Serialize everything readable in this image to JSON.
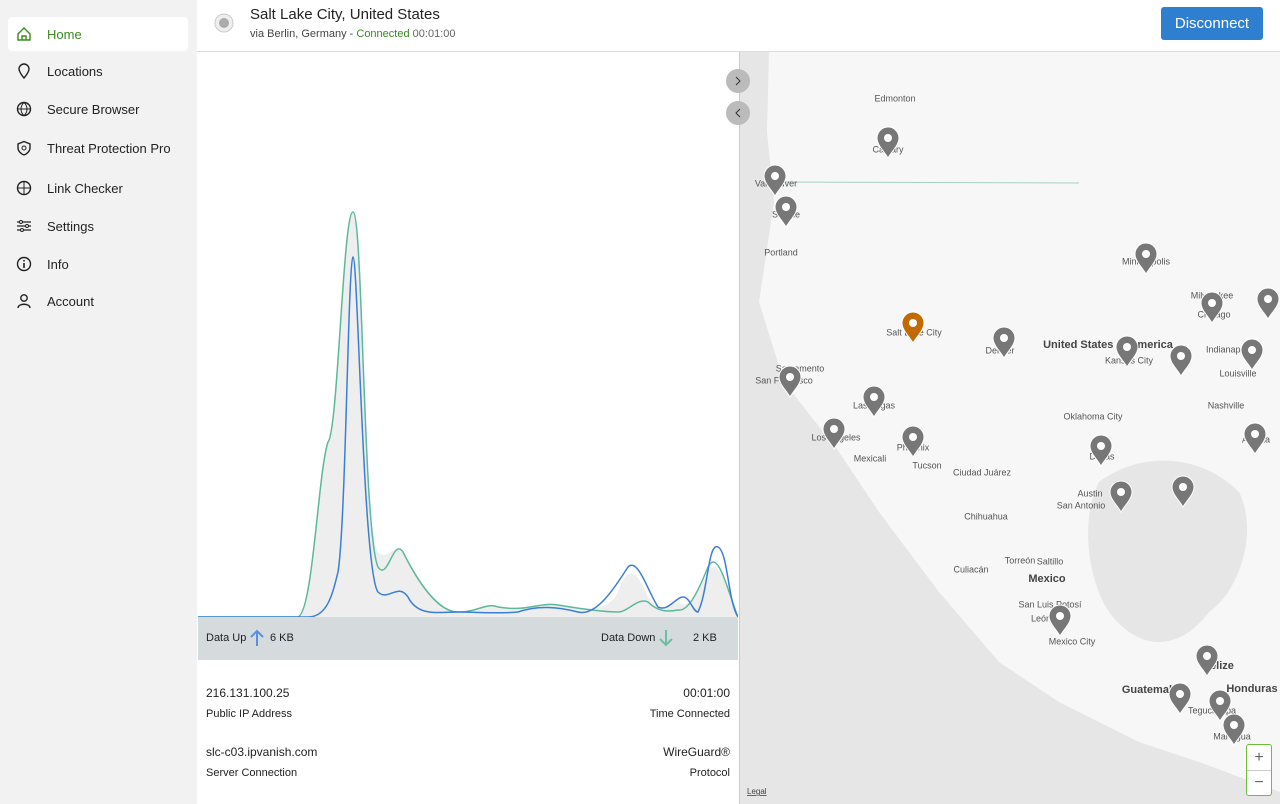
{
  "sidebar": {
    "items": [
      "Home",
      "Locations",
      "Secure Browser",
      "Threat Protection Pro",
      "Link Checker",
      "Settings",
      "Info",
      "Account"
    ]
  },
  "header": {
    "location": "Salt Lake City, United States",
    "via": "via Berlin, Germany -",
    "status": "Connected",
    "duration": "00:01:00",
    "button": "Disconnect"
  },
  "stats": {
    "data_up_label": "Data Up",
    "data_up_value": "6 KB",
    "data_down_label": "Data Down",
    "data_down_value": "2 KB"
  },
  "info": {
    "ip_value": "216.131.100.25",
    "ip_label": "Public IP Address",
    "time_value": "00:01:00",
    "time_label": "Time Connected",
    "server_value": "slc-c03.ipvanish.com",
    "server_label": "Server Connection",
    "protocol_value": "WireGuard®",
    "protocol_label": "Protocol"
  },
  "map": {
    "labels": [
      "Edmonton",
      "Calgary",
      "Vancouver",
      "Seattle",
      "Portland",
      "Minneapolis",
      "Milwaukee",
      "Chicago",
      "Salt Lake City",
      "Denver",
      "United States of America",
      "Kansas City",
      "Indianapolis",
      "Louisville",
      "Sacramento",
      "San Francisco",
      "Las Vegas",
      "Nashville",
      "Oklahoma City",
      "Los Angeles",
      "Phoenix",
      "Atlanta",
      "Mexicali",
      "Tucson",
      "Dallas",
      "Ciudad Juárez",
      "Austin",
      "San Antonio",
      "Chihuahua",
      "Torreón",
      "Saltillo",
      "Culiacán",
      "Mexico",
      "San Luis Potosí",
      "León",
      "Mexico City",
      "Belize",
      "Guatemala",
      "Honduras",
      "Tegucigalpa",
      "Managua"
    ],
    "legal": "Legal",
    "zoom_in": "+",
    "zoom_out": "−"
  }
}
